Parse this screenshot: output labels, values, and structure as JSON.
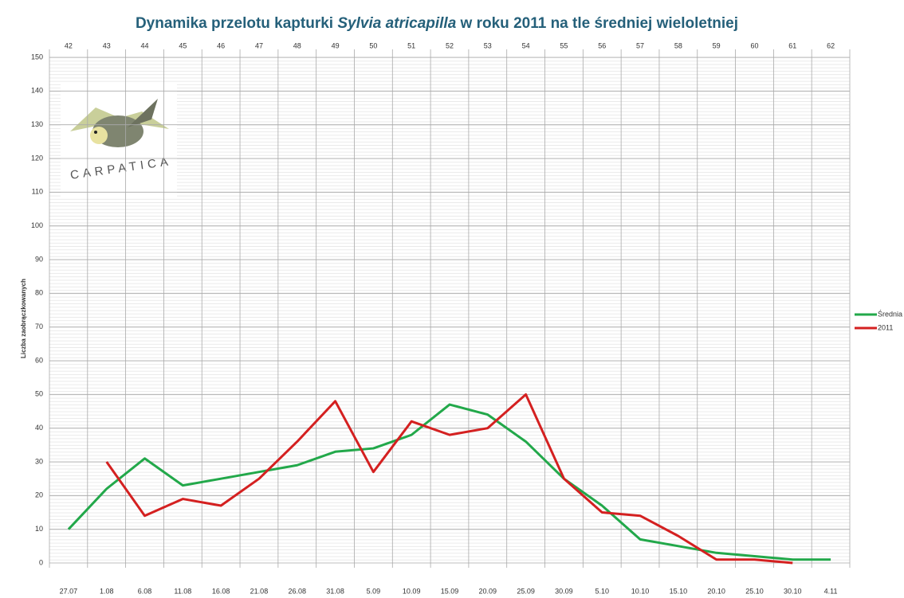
{
  "chart_data": {
    "type": "line",
    "title": [
      "Dynamika przelotu kapturki ",
      "Sylvia atricapilla",
      " w roku 2011 na tle średniej wieloletniej"
    ],
    "logo_text": "CARPATICA",
    "y_label": "Liczba zaobrączkowanych",
    "categories": [
      "27.07",
      "1.08",
      "6.08",
      "11.08",
      "16.08",
      "21.08",
      "26.08",
      "31.08",
      "5.09",
      "10.09",
      "15.09",
      "20.09",
      "25.09",
      "30.09",
      "5.10",
      "10.10",
      "15.10",
      "20.10",
      "25.10",
      "30.10",
      "4.11"
    ],
    "top_categories": [
      42,
      43,
      44,
      45,
      46,
      47,
      48,
      49,
      50,
      51,
      52,
      53,
      54,
      55,
      56,
      57,
      58,
      59,
      60,
      61,
      62
    ],
    "series": [
      {
        "name": "Średnia",
        "color": "#22a84a",
        "values": [
          10,
          22,
          31,
          23,
          25,
          27,
          29,
          33,
          34,
          38,
          47,
          44,
          36,
          25,
          17,
          7,
          5,
          3,
          2,
          1,
          1
        ]
      },
      {
        "name": "2011",
        "color": "#d42020",
        "values": [
          null,
          30,
          14,
          19,
          17,
          25,
          36,
          48,
          27,
          42,
          38,
          40,
          50,
          25,
          15,
          14,
          8,
          1,
          1,
          0,
          null
        ]
      }
    ],
    "ylim": [
      0,
      150
    ],
    "yticks": [
      0,
      10,
      20,
      30,
      40,
      50,
      60,
      70,
      80,
      90,
      100,
      110,
      120,
      130,
      140,
      150
    ],
    "grid": true,
    "legend": "right"
  }
}
